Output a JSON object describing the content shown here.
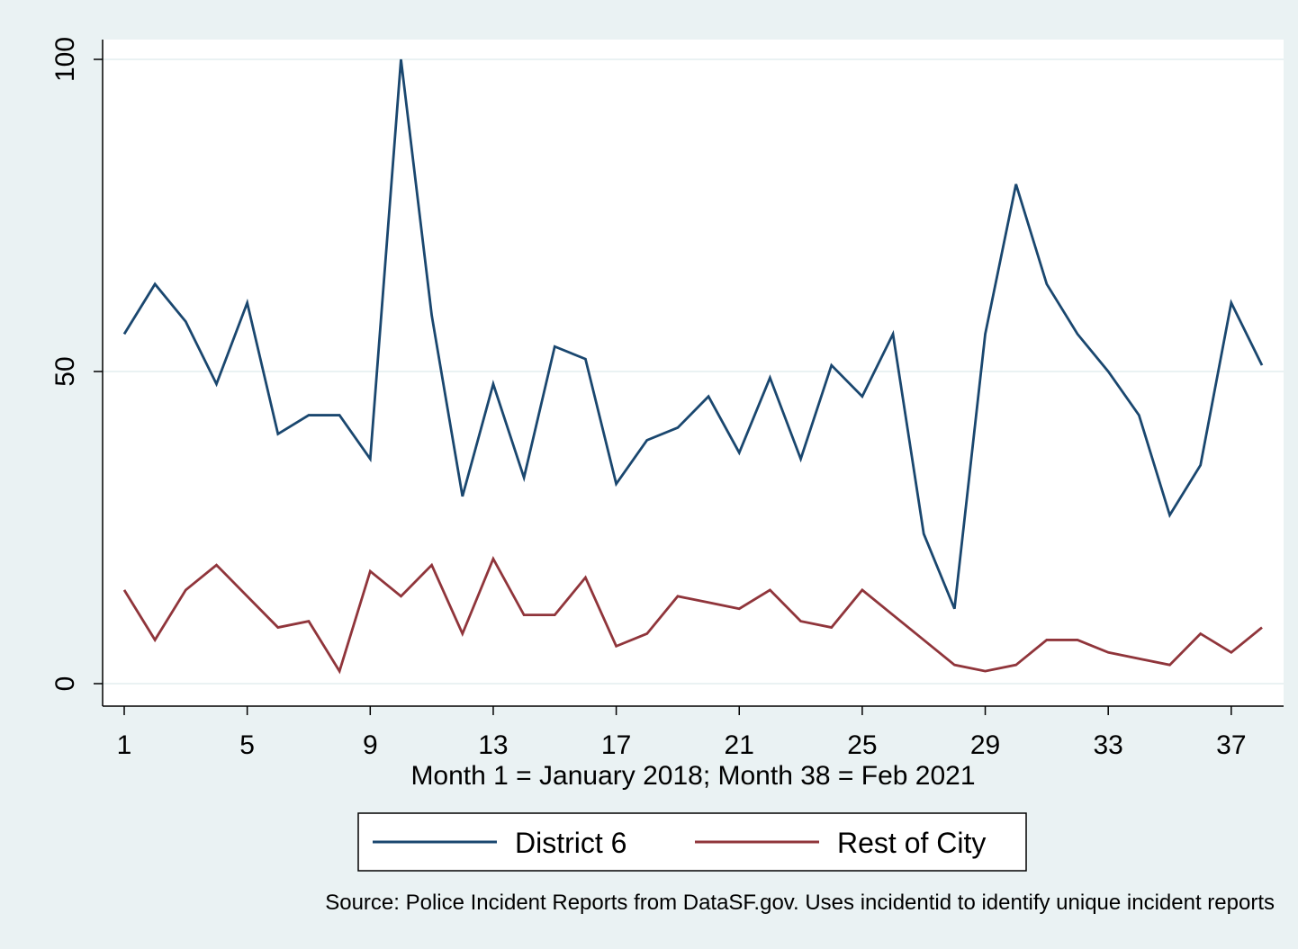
{
  "chart_data": {
    "type": "line",
    "title": "",
    "xlabel": "Month 1 = January 2018; Month 38 = Feb 2021",
    "ylabel": "",
    "xlim": [
      1,
      38
    ],
    "ylim": [
      0,
      100
    ],
    "x_ticks": [
      1,
      5,
      9,
      13,
      17,
      21,
      25,
      29,
      33,
      37
    ],
    "y_ticks": [
      0,
      50,
      100
    ],
    "grid": "horizontal",
    "legend_position": "bottom",
    "note": "Source: Police Incident Reports from DataSF.gov. Uses incidentid to identify unique incident reports",
    "x": [
      1,
      2,
      3,
      4,
      5,
      6,
      7,
      8,
      9,
      10,
      11,
      12,
      13,
      14,
      15,
      16,
      17,
      18,
      19,
      20,
      21,
      22,
      23,
      24,
      25,
      26,
      27,
      28,
      29,
      30,
      31,
      32,
      33,
      34,
      35,
      36,
      37,
      38
    ],
    "series": [
      {
        "name": "District 6",
        "color": "#1a476f",
        "values": [
          56,
          64,
          58,
          48,
          61,
          40,
          43,
          43,
          36,
          100,
          59,
          30,
          48,
          33,
          54,
          52,
          32,
          39,
          41,
          46,
          37,
          49,
          36,
          51,
          46,
          56,
          24,
          12,
          56,
          80,
          64,
          56,
          50,
          43,
          27,
          35,
          61,
          51
        ]
      },
      {
        "name": "Rest of City",
        "color": "#90353b",
        "values": [
          15,
          7,
          15,
          19,
          14,
          9,
          10,
          2,
          18,
          14,
          19,
          8,
          20,
          11,
          11,
          17,
          6,
          8,
          14,
          13,
          12,
          15,
          10,
          9,
          15,
          11,
          7,
          3,
          2,
          3,
          7,
          7,
          5,
          4,
          3,
          8,
          5,
          9
        ]
      }
    ]
  }
}
